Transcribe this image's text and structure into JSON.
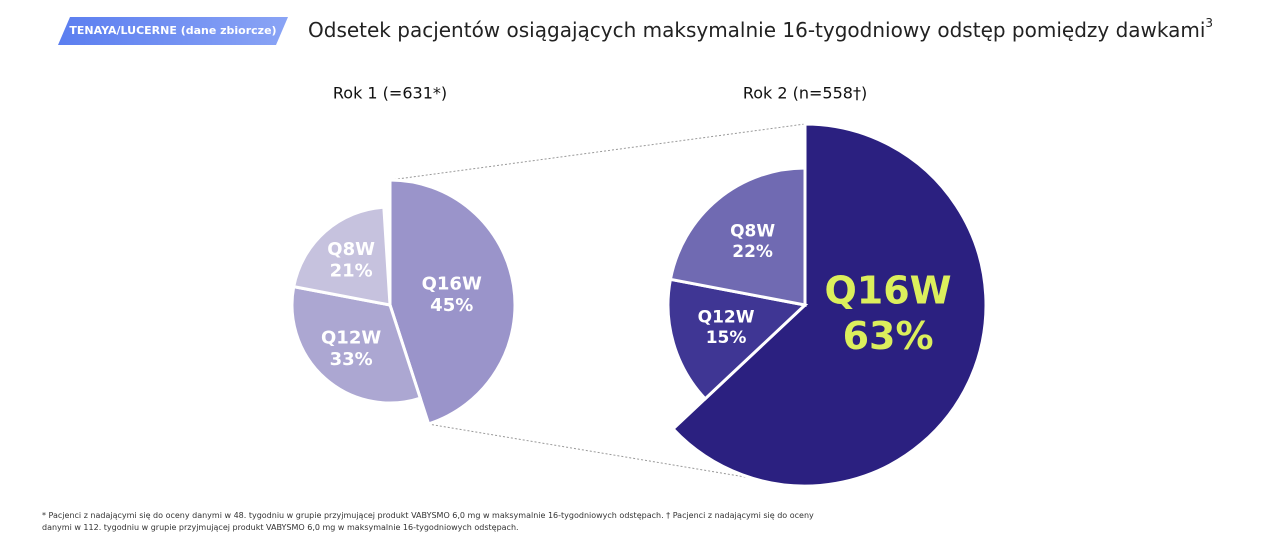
{
  "header": {
    "badge": "TENAYA/LUCERNE (dane zbiorcze)",
    "title": "Odsetek pacjentów osiągających maksymalnie 16-tygodniowy odstęp pomiędzy dawkami",
    "title_ref": "3"
  },
  "chart_data": [
    {
      "type": "pie",
      "title": "Rok 1 (=631*)",
      "categories": [
        "Q16W",
        "Q12W",
        "Q8W"
      ],
      "values": [
        45,
        33,
        21
      ],
      "value_labels": [
        "45%",
        "33%",
        "21%"
      ],
      "colors": [
        "#9a94ca",
        "#aca7d2",
        "#c6c2de"
      ]
    },
    {
      "type": "pie",
      "title": "Rok 2 (n=558†)",
      "categories": [
        "Q16W",
        "Q12W",
        "Q8W"
      ],
      "values": [
        63,
        15,
        22
      ],
      "value_labels": [
        "63%",
        "15%",
        "22%"
      ],
      "colors": [
        "#2b2080",
        "#3f3694",
        "#706ab2"
      ]
    }
  ],
  "footnote": "* Pacjenci z nadającymi się do oceny danymi w 48. tygodniu w grupie przyjmującej produkt VABYSMO 6,0 mg w maksymalnie 16-tygodniowych odstępach. † Pacjenci z nadającymi się do oceny danymi w 112. tygodniu w grupie przyjmującej produkt VABYSMO 6,0 mg w maksymalnie 16-tygodniowych odstępach."
}
